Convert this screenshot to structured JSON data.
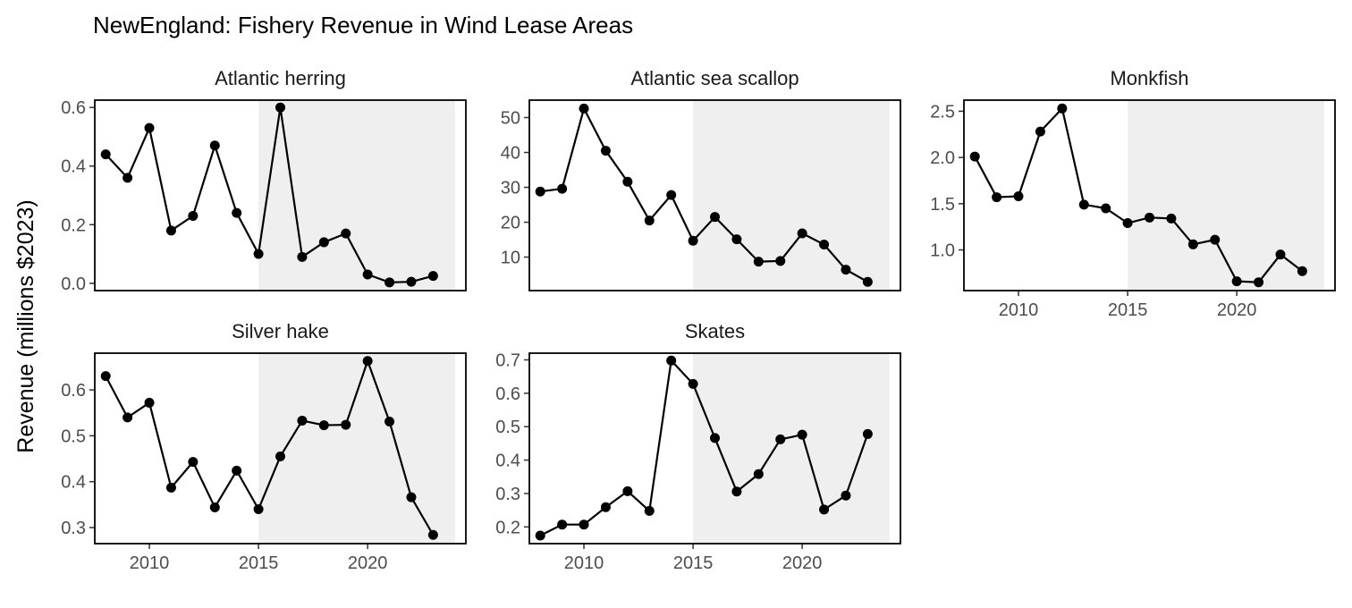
{
  "chart_data": {
    "type": "line",
    "title": "NewEngland: Fishery Revenue in Wind Lease Areas",
    "ylabel": "Revenue (millions $2023)",
    "xlabel": "",
    "x_ticks": [
      2010,
      2015,
      2020
    ],
    "xlim": [
      2007.5,
      2024.5
    ],
    "shaded_region": [
      2015,
      2024
    ],
    "grid": false,
    "legend": "none",
    "colors": {
      "line": "#000000",
      "point": "#000000",
      "shade": "#efefef",
      "border": "#000000"
    },
    "x": [
      2008,
      2009,
      2010,
      2011,
      2012,
      2013,
      2014,
      2015,
      2016,
      2017,
      2018,
      2019,
      2020,
      2021,
      2022,
      2023
    ],
    "panels": [
      {
        "name": "Atlantic herring",
        "ylim": [
          -0.025,
          0.625
        ],
        "y_ticks": [
          0.0,
          0.2,
          0.4,
          0.6
        ],
        "y_tick_labels": [
          "0.0",
          "0.2",
          "0.4",
          "0.6"
        ],
        "values": [
          0.44,
          0.36,
          0.53,
          0.18,
          0.23,
          0.47,
          0.24,
          0.1,
          0.6,
          0.09,
          0.14,
          0.17,
          0.03,
          0.003,
          0.005,
          0.025
        ]
      },
      {
        "name": "Atlantic sea scallop",
        "ylim": [
          0.4,
          55.0
        ],
        "y_ticks": [
          10,
          20,
          30,
          40,
          50
        ],
        "y_tick_labels": [
          "10",
          "20",
          "30",
          "40",
          "50"
        ],
        "values": [
          28.8,
          29.6,
          52.6,
          40.5,
          31.6,
          20.5,
          27.8,
          14.7,
          21.5,
          15.1,
          8.7,
          8.9,
          16.8,
          13.6,
          6.4,
          2.9
        ]
      },
      {
        "name": "Monkfish",
        "ylim": [
          0.56,
          2.62
        ],
        "y_ticks": [
          1.0,
          1.5,
          2.0,
          2.5
        ],
        "y_tick_labels": [
          "1.0",
          "1.5",
          "2.0",
          "2.5"
        ],
        "values": [
          2.01,
          1.57,
          1.58,
          2.28,
          2.53,
          1.49,
          1.45,
          1.29,
          1.35,
          1.34,
          1.06,
          1.11,
          0.66,
          0.65,
          0.95,
          0.77
        ]
      },
      {
        "name": "Silver hake",
        "ylim": [
          0.265,
          0.68
        ],
        "y_ticks": [
          0.3,
          0.4,
          0.5,
          0.6
        ],
        "y_tick_labels": [
          "0.3",
          "0.4",
          "0.5",
          "0.6"
        ],
        "values": [
          0.63,
          0.54,
          0.572,
          0.387,
          0.443,
          0.344,
          0.424,
          0.34,
          0.455,
          0.533,
          0.523,
          0.524,
          0.663,
          0.531,
          0.366,
          0.284
        ]
      },
      {
        "name": "Skates",
        "ylim": [
          0.15,
          0.72
        ],
        "y_ticks": [
          0.2,
          0.3,
          0.4,
          0.5,
          0.6,
          0.7
        ],
        "y_tick_labels": [
          "0.2",
          "0.3",
          "0.4",
          "0.5",
          "0.6",
          "0.7"
        ],
        "values": [
          0.174,
          0.207,
          0.207,
          0.259,
          0.307,
          0.248,
          0.698,
          0.628,
          0.466,
          0.306,
          0.358,
          0.462,
          0.476,
          0.252,
          0.294,
          0.478
        ]
      }
    ]
  }
}
